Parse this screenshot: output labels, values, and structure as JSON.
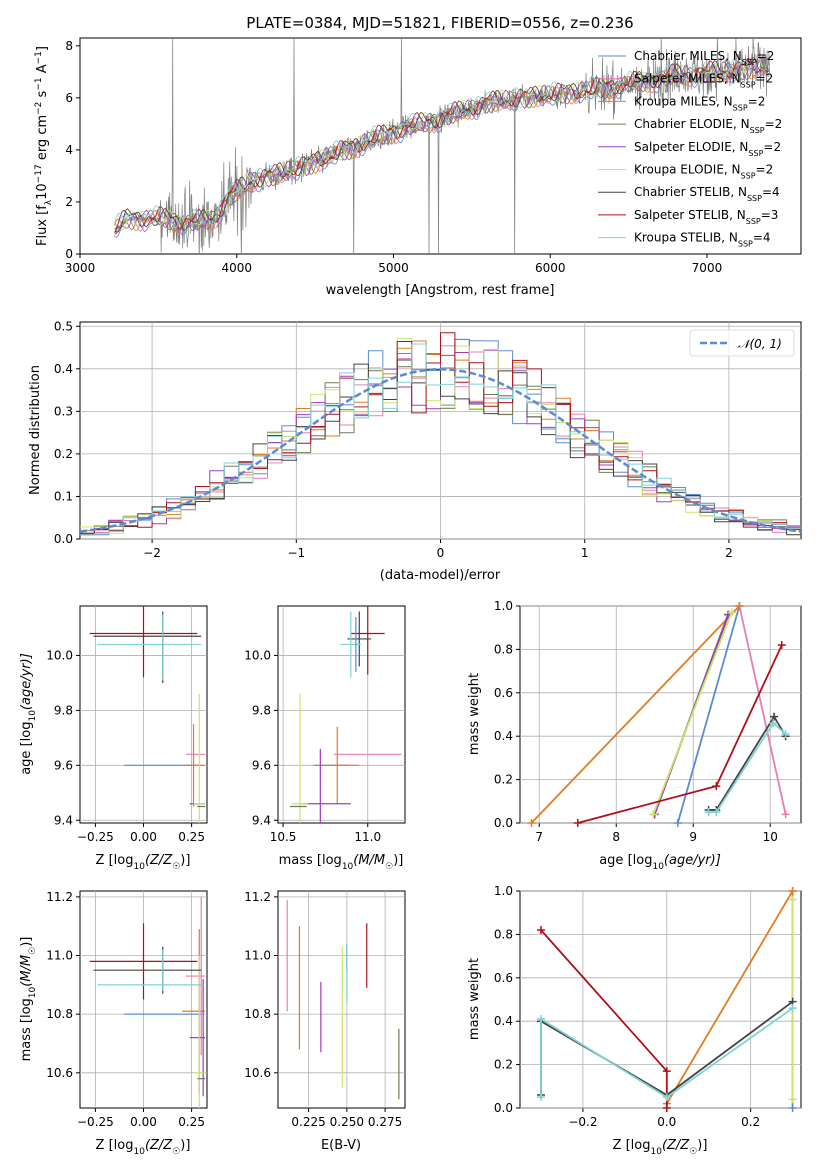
{
  "colors": {
    "Chabrier MILES": "#5b8bd6",
    "Salpeter MILES": "#e87db4",
    "Kroupa MILES": "#e07d22",
    "Chabrier ELODIE": "#6b7f5a",
    "Salpeter ELODIE": "#a23cbf",
    "Kroupa ELODIE": "#c9e66a",
    "Chabrier STELIB": "#444444",
    "Salpeter STELIB": "#b0101c",
    "Kroupa STELIB": "#7fd3d3",
    "data": "#808080",
    "normal": "#5b8bd6"
  },
  "chart_data": [
    {
      "id": "spectrum",
      "type": "line",
      "title": "PLATE=0384, MJD=51821, FIBERID=0556, z=0.236",
      "xlabel": "wavelength [Angstrom, rest frame]",
      "ylabel_main": "Flux [f",
      "ylabel_sub1": "λ",
      "ylabel_mid": "10",
      "ylabel_sup1": "−17",
      "ylabel_rest1": " erg cm",
      "ylabel_sup2": "−2",
      "ylabel_rest2": " s",
      "ylabel_sup3": "−1",
      "ylabel_rest3": " A",
      "ylabel_sup4": "−1",
      "ylabel_end": "]",
      "xlim": [
        3000,
        7600
      ],
      "ylim": [
        0,
        8.3
      ],
      "xticks": [
        3000,
        4000,
        5000,
        6000,
        7000
      ],
      "yticks": [
        0,
        2,
        4,
        6,
        8
      ],
      "continuum": [
        [
          3220,
          0.9
        ],
        [
          3300,
          1.35
        ],
        [
          3500,
          1.35
        ],
        [
          3700,
          1.2
        ],
        [
          3850,
          1.3
        ],
        [
          3950,
          2.2
        ],
        [
          4100,
          2.8
        ],
        [
          4400,
          3.3
        ],
        [
          4700,
          4.0
        ],
        [
          5000,
          4.7
        ],
        [
          5300,
          5.2
        ],
        [
          5600,
          5.8
        ],
        [
          5900,
          6.05
        ],
        [
          6200,
          6.25
        ],
        [
          6500,
          6.5
        ],
        [
          6800,
          6.85
        ],
        [
          7100,
          7.0
        ],
        [
          7400,
          7.2
        ]
      ],
      "legend": [
        {
          "name": "Chabrier MILES",
          "n": "2"
        },
        {
          "name": "Salpeter MILES",
          "n": "2"
        },
        {
          "name": "Kroupa MILES",
          "n": "2"
        },
        {
          "name": "Chabrier ELODIE",
          "n": "2"
        },
        {
          "name": "Salpeter ELODIE",
          "n": "2"
        },
        {
          "name": "Kroupa ELODIE",
          "n": "2"
        },
        {
          "name": "Chabrier STELIB",
          "n": "4"
        },
        {
          "name": "Salpeter STELIB",
          "n": "3"
        },
        {
          "name": "Kroupa STELIB",
          "n": "4"
        }
      ],
      "legend_prefix": ", N",
      "legend_sub": "SSP",
      "legend_eq": "="
    },
    {
      "id": "residuals",
      "type": "line",
      "xlabel": "(data-model)/error",
      "ylabel": "Normed distribution",
      "xlim": [
        -2.5,
        2.5
      ],
      "ylim": [
        0,
        0.51
      ],
      "xticks": [
        -2,
        -1,
        0,
        1,
        2
      ],
      "yticks": [
        0.0,
        0.1,
        0.2,
        0.3,
        0.4,
        0.5
      ],
      "grid": true,
      "legend_label": "𝒩(0, 1)",
      "legend_position": "top-right",
      "bin_width": 0.1
    },
    {
      "id": "age_vs_Z",
      "type": "scatter",
      "xlabel": "Z [log10(Z/Z☉)]",
      "ylabel": "age  [log10(age/yr)]",
      "xlim": [
        -0.33,
        0.33
      ],
      "ylim": [
        9.39,
        10.18
      ],
      "xticks": [
        -0.25,
        0.0,
        0.25
      ],
      "yticks": [
        9.4,
        9.6,
        9.8,
        10.0
      ],
      "grid": true,
      "points": [
        {
          "model": "Chabrier MILES",
          "x": 0.1,
          "xerr": 0.2,
          "y": 9.6,
          "yerr": 0.0
        },
        {
          "model": "Salpeter MILES",
          "x": 0.27,
          "xerr": 0.05,
          "y": 9.64,
          "yerr": 0.0
        },
        {
          "model": "Kroupa MILES",
          "x": 0.26,
          "xerr": 0.06,
          "y": 9.6,
          "yerr": 0.15
        },
        {
          "model": "Salpeter ELODIE",
          "x": 0.28,
          "xerr": 0.04,
          "y": 9.46,
          "yerr": 0.0
        },
        {
          "model": "Kroupa ELODIE",
          "x": 0.29,
          "xerr": 0.03,
          "y": 9.46,
          "yerr": 0.4
        },
        {
          "model": "Chabrier ELODIE",
          "x": 0.3,
          "xerr": 0.02,
          "y": 9.45,
          "yerr": 0.0
        },
        {
          "model": "Chabrier STELIB",
          "x": 0.02,
          "xerr": 0.28,
          "y": 10.07,
          "yerr": 0.0
        },
        {
          "model": "Salpeter STELIB",
          "x": 0.0,
          "xerr": 0.28,
          "y": 10.08,
          "yerr": 0.16
        },
        {
          "model": "Kroupa STELIB",
          "x": 0.03,
          "xerr": 0.27,
          "y": 10.04,
          "yerr": 0.0
        },
        {
          "model": "Chabrier STELIB",
          "x": 0.1,
          "xerr": 0.0,
          "y": 10.03,
          "yerr": 0.13
        },
        {
          "model": "Kroupa STELIB",
          "x": 0.1,
          "xerr": 0.0,
          "y": 10.03,
          "yerr": 0.12
        }
      ]
    },
    {
      "id": "age_vs_mass",
      "type": "scatter",
      "xlabel": "mass [log10(M/M☉)]",
      "xlim": [
        10.47,
        11.22
      ],
      "ylim": [
        9.39,
        10.18
      ],
      "xticks": [
        10.5,
        11.0
      ],
      "yticks": [
        9.4,
        9.6,
        9.8,
        10.0
      ],
      "grid": true,
      "points": [
        {
          "model": "Chabrier MILES",
          "x": 10.78,
          "xerr": 0.1,
          "y": 9.6,
          "yerr": 0.0
        },
        {
          "model": "Kroupa MILES",
          "x": 10.82,
          "xerr": 0.13,
          "y": 9.6,
          "yerr": 0.14
        },
        {
          "model": "Salpeter MILES",
          "x": 11.0,
          "xerr": 0.2,
          "y": 9.64,
          "yerr": 0.0
        },
        {
          "model": "Salpeter ELODIE",
          "x": 10.75,
          "xerr": 0.15,
          "y": 9.46,
          "yerr": 0.0
        },
        {
          "model": "Salpeter ELODIE",
          "x": 10.72,
          "xerr": 0.0,
          "y": 9.46,
          "yerr": 0.2
        },
        {
          "model": "Kroupa ELODIE",
          "x": 10.6,
          "xerr": 0.05,
          "y": 9.46,
          "yerr": 0.4
        },
        {
          "model": "Chabrier ELODIE",
          "x": 10.59,
          "xerr": 0.05,
          "y": 9.45,
          "yerr": 0.0
        },
        {
          "model": "Salpeter STELIB",
          "x": 11.0,
          "xerr": 0.1,
          "y": 10.08,
          "yerr": 0.15
        },
        {
          "model": "Chabrier STELIB",
          "x": 10.95,
          "xerr": 0.07,
          "y": 10.06,
          "yerr": 0.1
        },
        {
          "model": "Kroupa STELIB",
          "x": 10.9,
          "xerr": 0.06,
          "y": 10.04,
          "yerr": 0.12
        },
        {
          "model": "Chabrier MILES",
          "x": 10.93,
          "xerr": 0.0,
          "y": 10.04,
          "yerr": 0.1
        }
      ]
    },
    {
      "id": "weight_vs_age",
      "type": "line",
      "xlabel": "age  [log10(age/yr)]",
      "ylabel": "mass weight",
      "xlim": [
        6.75,
        10.4
      ],
      "ylim": [
        0,
        1.0
      ],
      "xticks": [
        7,
        8,
        9,
        10
      ],
      "yticks": [
        0.0,
        0.2,
        0.4,
        0.6,
        0.8,
        1.0
      ],
      "grid": true,
      "series": [
        {
          "model": "Chabrier MILES",
          "x": [
            8.8,
            9.6
          ],
          "y": [
            0.0,
            1.0
          ]
        },
        {
          "model": "Salpeter MILES",
          "x": [
            9.6,
            10.2
          ],
          "y": [
            1.0,
            0.04
          ]
        },
        {
          "model": "Kroupa MILES",
          "x": [
            6.9,
            9.6
          ],
          "y": [
            0.0,
            1.0
          ]
        },
        {
          "model": "Chabrier ELODIE",
          "x": [
            8.5,
            9.45
          ],
          "y": [
            0.04,
            0.96
          ]
        },
        {
          "model": "Salpeter ELODIE",
          "x": [
            8.5,
            9.46
          ],
          "y": [
            0.04,
            0.96
          ]
        },
        {
          "model": "Kroupa ELODIE",
          "x": [
            8.48,
            9.5
          ],
          "y": [
            0.04,
            0.97
          ]
        },
        {
          "model": "Chabrier STELIB",
          "x": [
            9.2,
            9.3,
            10.05,
            10.2
          ],
          "y": [
            0.06,
            0.06,
            0.49,
            0.4
          ]
        },
        {
          "model": "Salpeter STELIB",
          "x": [
            7.5,
            9.3,
            10.15
          ],
          "y": [
            0.0,
            0.17,
            0.82
          ]
        },
        {
          "model": "Kroupa STELIB",
          "x": [
            9.2,
            9.3,
            10.04,
            10.2
          ],
          "y": [
            0.05,
            0.05,
            0.46,
            0.41
          ]
        }
      ]
    },
    {
      "id": "mass_vs_Z",
      "type": "scatter",
      "xlabel": "Z [log10(Z/Z☉)]",
      "ylabel": "mass [log10(M/M☉)]",
      "xlim": [
        -0.33,
        0.33
      ],
      "ylim": [
        10.48,
        11.22
      ],
      "xticks": [
        -0.25,
        0.0,
        0.25
      ],
      "yticks": [
        10.6,
        10.8,
        11.0,
        11.2
      ],
      "grid": true,
      "points": [
        {
          "model": "Chabrier MILES",
          "x": 0.1,
          "xerr": 0.2,
          "y": 10.8,
          "yerr": 0.0
        },
        {
          "model": "Salpeter MILES",
          "x": 0.27,
          "xerr": 0.05,
          "y": 10.93,
          "yerr": 0.0
        },
        {
          "model": "Salpeter MILES",
          "x": 0.3,
          "xerr": 0.0,
          "y": 10.93,
          "yerr": 0.27
        },
        {
          "model": "Kroupa MILES",
          "x": 0.26,
          "xerr": 0.06,
          "y": 10.81,
          "yerr": 0.0
        },
        {
          "model": "Kroupa MILES",
          "x": 0.29,
          "xerr": 0.0,
          "y": 10.81,
          "yerr": 0.28
        },
        {
          "model": "Salpeter ELODIE",
          "x": 0.28,
          "xerr": 0.04,
          "y": 10.72,
          "yerr": 0.0
        },
        {
          "model": "Salpeter ELODIE",
          "x": 0.31,
          "xerr": 0.0,
          "y": 10.72,
          "yerr": 0.2
        },
        {
          "model": "Kroupa ELODIE",
          "x": 0.29,
          "xerr": 0.03,
          "y": 10.6,
          "yerr": 0.4
        },
        {
          "model": "Chabrier ELODIE",
          "x": 0.3,
          "xerr": 0.02,
          "y": 10.58,
          "yerr": 0.0
        },
        {
          "model": "Chabrier STELIB",
          "x": 0.02,
          "xerr": 0.28,
          "y": 10.95,
          "yerr": 0.0
        },
        {
          "model": "Salpeter STELIB",
          "x": 0.0,
          "xerr": 0.28,
          "y": 10.98,
          "yerr": 0.13
        },
        {
          "model": "Kroupa STELIB",
          "x": 0.03,
          "xerr": 0.27,
          "y": 10.9,
          "yerr": 0.0
        },
        {
          "model": "Chabrier STELIB",
          "x": 0.1,
          "xerr": 0.0,
          "y": 10.95,
          "yerr": 0.08
        },
        {
          "model": "Kroupa STELIB",
          "x": 0.1,
          "xerr": 0.0,
          "y": 10.95,
          "yerr": 0.07
        }
      ]
    },
    {
      "id": "mass_vs_ebv",
      "type": "scatter",
      "xlabel": "E(B-V)",
      "xlim": [
        0.205,
        0.288
      ],
      "ylim": [
        10.48,
        11.22
      ],
      "xticks": [
        0.225,
        0.25,
        0.275
      ],
      "yticks": [
        10.6,
        10.8,
        11.0,
        11.2
      ],
      "grid": true,
      "points": [
        {
          "model": "Salpeter MILES",
          "x": 0.211,
          "xerr": 0.0,
          "y": 11.0,
          "yerr": 0.19
        },
        {
          "model": "Kroupa MILES",
          "x": 0.219,
          "xerr": 0.0,
          "y": 10.89,
          "yerr": 0.21
        },
        {
          "model": "Salpeter ELODIE",
          "x": 0.233,
          "xerr": 0.0,
          "y": 10.79,
          "yerr": 0.12
        },
        {
          "model": "Kroupa ELODIE",
          "x": 0.247,
          "xerr": 0.0,
          "y": 10.79,
          "yerr": 0.24
        },
        {
          "model": "Chabrier MILES",
          "x": 0.25,
          "xerr": 0.0,
          "y": 10.99,
          "yerr": 0.05
        },
        {
          "model": "Kroupa STELIB",
          "x": 0.25,
          "xerr": 0.0,
          "y": 10.94,
          "yerr": 0.1
        },
        {
          "model": "Salpeter STELIB",
          "x": 0.263,
          "xerr": 0.0,
          "y": 11.0,
          "yerr": 0.11
        },
        {
          "model": "Chabrier ELODIE",
          "x": 0.284,
          "xerr": 0.0,
          "y": 10.63,
          "yerr": 0.12
        }
      ]
    },
    {
      "id": "weight_vs_Z",
      "type": "line",
      "xlabel": "Z [log10(Z/Z☉)]",
      "ylabel": "mass weight",
      "xlim": [
        -0.35,
        0.32
      ],
      "ylim": [
        0,
        1.0
      ],
      "xticks": [
        -0.2,
        0.0,
        0.2
      ],
      "yticks": [
        0.0,
        0.2,
        0.4,
        0.6,
        0.8,
        1.0
      ],
      "grid": true,
      "series": [
        {
          "model": "Chabrier MILES",
          "x": [
            0.3,
            0.3
          ],
          "y": [
            0.0,
            1.0
          ]
        },
        {
          "model": "Kroupa MILES",
          "x": [
            0.0,
            0.3
          ],
          "y": [
            0.02,
            1.0
          ]
        },
        {
          "model": "Kroupa ELODIE",
          "x": [
            0.3,
            0.3
          ],
          "y": [
            0.04,
            0.96
          ]
        },
        {
          "model": "Chabrier STELIB",
          "x": [
            -0.3,
            -0.3,
            0.0,
            0.3
          ],
          "y": [
            0.06,
            0.4,
            0.06,
            0.49
          ]
        },
        {
          "model": "Salpeter STELIB",
          "x": [
            -0.3,
            0.0,
            0.0
          ],
          "y": [
            0.82,
            0.17,
            0.0
          ]
        },
        {
          "model": "Kroupa STELIB",
          "x": [
            -0.3,
            -0.3,
            0.0,
            0.3
          ],
          "y": [
            0.05,
            0.41,
            0.05,
            0.46
          ]
        }
      ]
    }
  ],
  "labels": {
    "ylab_age_a": "age  [log",
    "ylab_age_b": "10",
    "ylab_age_c": "(age/yr)]",
    "ylab_mass_a": "mass [log",
    "ylab_mass_b": "10",
    "ylab_mass_c": "(M/M",
    "ylab_mass_d": "☉",
    "ylab_mass_e": ")]",
    "xlab_Z_a": "Z [log",
    "xlab_Z_b": "10",
    "xlab_Z_c": "(Z/Z",
    "xlab_Z_d": "☉",
    "xlab_Z_e": ")]"
  }
}
